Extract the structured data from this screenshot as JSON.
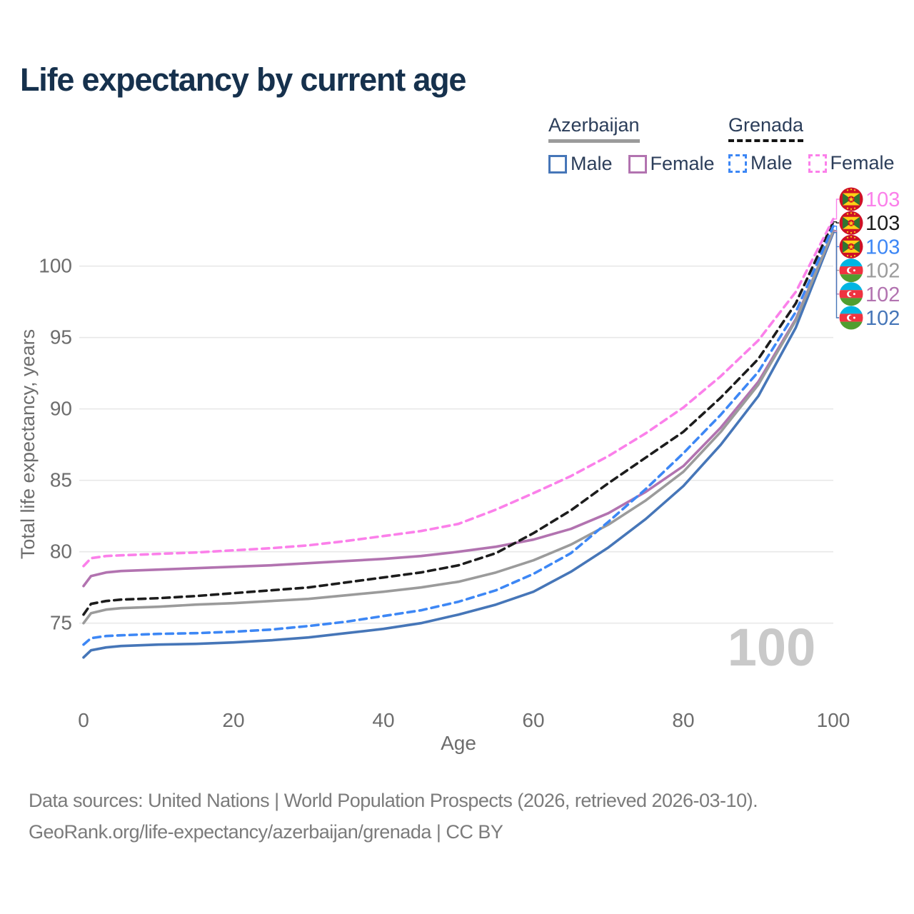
{
  "title": "Life expectancy by current age",
  "watermark": "100",
  "footer": {
    "line1": "Data sources: United Nations | World Population Prospects (2026, retrieved 2026-03-10).",
    "line2": "GeoRank.org/life-expectancy/azerbaijan/grenada | CC BY"
  },
  "legend": {
    "groups": [
      {
        "label": "Azerbaijan",
        "line_style": "solid",
        "underline_color": "#9b9b9b",
        "items": [
          {
            "label": "Male",
            "color": "#4676b8",
            "dashed": false
          },
          {
            "label": "Female",
            "color": "#b273b0",
            "dashed": false
          }
        ]
      },
      {
        "label": "Grenada",
        "line_style": "dashed",
        "underline_color": "#141414",
        "items": [
          {
            "label": "Male",
            "color": "#3d87f5",
            "dashed": true
          },
          {
            "label": "Female",
            "color": "#fb80ea",
            "dashed": true
          }
        ]
      }
    ]
  },
  "chart_data": {
    "type": "line",
    "title": "Life expectancy by current age",
    "xlabel": "Age",
    "ylabel": "Total life expectancy, years",
    "x_ticks": [
      0,
      20,
      40,
      60,
      80,
      100
    ],
    "y_ticks": [
      75,
      80,
      85,
      90,
      95,
      100
    ],
    "xlim": [
      0,
      100
    ],
    "ylim": [
      71.5,
      104.5
    ],
    "grid": "horizontal",
    "legend_position": "top-right",
    "ages": [
      0,
      1,
      3,
      5,
      10,
      15,
      20,
      25,
      30,
      35,
      40,
      45,
      50,
      55,
      60,
      65,
      70,
      75,
      80,
      85,
      90,
      95,
      100
    ],
    "series": [
      {
        "name": "Grenada Female",
        "color": "#fb80ea",
        "dashed": true,
        "flag": "grenada",
        "end_label": "103",
        "values": [
          79.0,
          79.55,
          79.7,
          79.75,
          79.85,
          79.95,
          80.1,
          80.25,
          80.45,
          80.75,
          81.1,
          81.45,
          81.95,
          82.95,
          84.1,
          85.3,
          86.7,
          88.3,
          90.1,
          92.3,
          94.8,
          98.2,
          103.3
        ]
      },
      {
        "name": "Grenada Total",
        "color": "#1c1c1c",
        "dashed": true,
        "flag": "grenada",
        "end_label": "103",
        "values": [
          75.6,
          76.35,
          76.55,
          76.65,
          76.75,
          76.9,
          77.1,
          77.3,
          77.5,
          77.85,
          78.2,
          78.55,
          79.05,
          79.9,
          81.3,
          82.9,
          84.8,
          86.6,
          88.4,
          90.8,
          93.5,
          97.4,
          103.1
        ]
      },
      {
        "name": "Grenada Male",
        "color": "#3d87f5",
        "dashed": true,
        "flag": "grenada",
        "end_label": "103",
        "values": [
          73.5,
          73.95,
          74.1,
          74.15,
          74.25,
          74.3,
          74.4,
          74.55,
          74.8,
          75.1,
          75.5,
          75.9,
          76.5,
          77.3,
          78.45,
          79.9,
          82.1,
          84.4,
          86.9,
          89.6,
          92.6,
          96.8,
          102.8
        ]
      },
      {
        "name": "Azerbaijan Total",
        "color": "#9b9b9b",
        "dashed": false,
        "flag": "azerbaijan",
        "end_label": "102",
        "values": [
          75.0,
          75.7,
          75.95,
          76.05,
          76.15,
          76.3,
          76.4,
          76.55,
          76.7,
          76.95,
          77.2,
          77.5,
          77.9,
          78.55,
          79.4,
          80.5,
          81.9,
          83.6,
          85.6,
          88.4,
          91.7,
          96.2,
          102.5
        ]
      },
      {
        "name": "Azerbaijan Female",
        "color": "#b273b0",
        "dashed": false,
        "flag": "azerbaijan",
        "end_label": "102",
        "values": [
          77.6,
          78.3,
          78.55,
          78.65,
          78.75,
          78.85,
          78.95,
          79.05,
          79.2,
          79.35,
          79.5,
          79.7,
          80.0,
          80.35,
          80.85,
          81.6,
          82.7,
          84.2,
          86.0,
          88.7,
          91.9,
          96.3,
          102.45
        ]
      },
      {
        "name": "Azerbaijan Male",
        "color": "#4676b8",
        "dashed": false,
        "flag": "azerbaijan",
        "end_label": "102",
        "values": [
          72.6,
          73.1,
          73.3,
          73.4,
          73.5,
          73.55,
          73.65,
          73.8,
          74.0,
          74.3,
          74.6,
          75.0,
          75.6,
          76.3,
          77.2,
          78.6,
          80.3,
          82.3,
          84.6,
          87.5,
          90.9,
          95.7,
          102.35
        ]
      }
    ]
  }
}
